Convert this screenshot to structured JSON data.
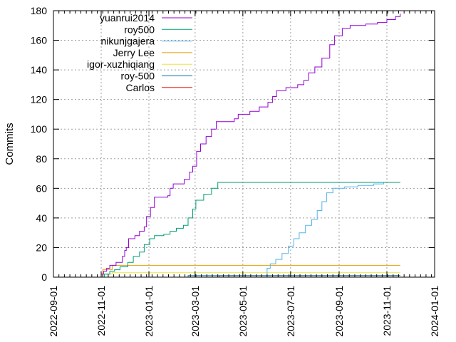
{
  "chart_data": {
    "type": "line",
    "title": "",
    "xlabel": "",
    "ylabel": "Commits",
    "xlim": [
      "2022-09-01",
      "2024-01-01"
    ],
    "ylim": [
      0,
      180
    ],
    "x_ticks": [
      "2022-09-01",
      "2022-11-01",
      "2023-01-01",
      "2023-03-01",
      "2023-05-01",
      "2023-07-01",
      "2023-09-01",
      "2023-11-01",
      "2024-01-01"
    ],
    "y_ticks": [
      0,
      20,
      40,
      60,
      80,
      100,
      120,
      140,
      160,
      180
    ],
    "grid": true,
    "legend_position": "top-left",
    "series": [
      {
        "name": "yuanrui2014",
        "color": "#9400d3",
        "points": [
          [
            "2022-10-30",
            0
          ],
          [
            "2022-11-01",
            2
          ],
          [
            "2022-11-04",
            4
          ],
          [
            "2022-11-08",
            6
          ],
          [
            "2022-11-12",
            8
          ],
          [
            "2022-11-20",
            10
          ],
          [
            "2022-11-28",
            14
          ],
          [
            "2022-12-01",
            18
          ],
          [
            "2022-12-03",
            20
          ],
          [
            "2022-12-06",
            26
          ],
          [
            "2022-12-14",
            28
          ],
          [
            "2022-12-20",
            31
          ],
          [
            "2022-12-26",
            34
          ],
          [
            "2022-12-29",
            41
          ],
          [
            "2023-01-03",
            47
          ],
          [
            "2023-01-08",
            54
          ],
          [
            "2023-01-25",
            55
          ],
          [
            "2023-01-28",
            60
          ],
          [
            "2023-02-01",
            63
          ],
          [
            "2023-02-15",
            66
          ],
          [
            "2023-02-22",
            71
          ],
          [
            "2023-02-26",
            75
          ],
          [
            "2023-03-03",
            85
          ],
          [
            "2023-03-08",
            90
          ],
          [
            "2023-03-15",
            95
          ],
          [
            "2023-03-22",
            100
          ],
          [
            "2023-03-28",
            105
          ],
          [
            "2023-04-20",
            107
          ],
          [
            "2023-04-25",
            110
          ],
          [
            "2023-05-10",
            112
          ],
          [
            "2023-05-22",
            115
          ],
          [
            "2023-06-02",
            118
          ],
          [
            "2023-06-08",
            122
          ],
          [
            "2023-06-13",
            126
          ],
          [
            "2023-06-25",
            128
          ],
          [
            "2023-07-10",
            130
          ],
          [
            "2023-07-18",
            133
          ],
          [
            "2023-07-24",
            138
          ],
          [
            "2023-08-01",
            142
          ],
          [
            "2023-08-10",
            148
          ],
          [
            "2023-08-20",
            157
          ],
          [
            "2023-08-26",
            163
          ],
          [
            "2023-09-05",
            168
          ],
          [
            "2023-09-15",
            170
          ],
          [
            "2023-10-05",
            171
          ],
          [
            "2023-10-20",
            172
          ],
          [
            "2023-11-01",
            174
          ],
          [
            "2023-11-12",
            176
          ],
          [
            "2023-11-18",
            178
          ]
        ]
      },
      {
        "name": "roy500",
        "color": "#009e73",
        "points": [
          [
            "2022-11-01",
            0
          ],
          [
            "2022-11-05",
            2
          ],
          [
            "2022-11-12",
            4
          ],
          [
            "2022-11-18",
            5
          ],
          [
            "2022-11-25",
            7
          ],
          [
            "2022-12-05",
            10
          ],
          [
            "2022-12-12",
            14
          ],
          [
            "2022-12-20",
            17
          ],
          [
            "2022-12-26",
            22
          ],
          [
            "2023-01-02",
            26
          ],
          [
            "2023-01-08",
            28
          ],
          [
            "2023-01-20",
            29
          ],
          [
            "2023-01-28",
            31
          ],
          [
            "2023-02-05",
            33
          ],
          [
            "2023-02-14",
            35
          ],
          [
            "2023-02-20",
            40
          ],
          [
            "2023-02-26",
            46
          ],
          [
            "2023-03-02",
            52
          ],
          [
            "2023-03-12",
            56
          ],
          [
            "2023-03-22",
            60
          ],
          [
            "2023-03-30",
            64
          ],
          [
            "2023-11-18",
            64
          ]
        ]
      },
      {
        "name": "nikunjgajera",
        "color": "#56b4e9",
        "points": [
          [
            "2023-05-29",
            0
          ],
          [
            "2023-06-01",
            6
          ],
          [
            "2023-06-05",
            9
          ],
          [
            "2023-06-12",
            12
          ],
          [
            "2023-06-20",
            16
          ],
          [
            "2023-06-28",
            21
          ],
          [
            "2023-07-05",
            26
          ],
          [
            "2023-07-12",
            30
          ],
          [
            "2023-07-20",
            35
          ],
          [
            "2023-07-28",
            39
          ],
          [
            "2023-08-04",
            45
          ],
          [
            "2023-08-10",
            51
          ],
          [
            "2023-08-16",
            57
          ],
          [
            "2023-08-24",
            60
          ],
          [
            "2023-09-08",
            61
          ],
          [
            "2023-09-25",
            62
          ],
          [
            "2023-10-15",
            63
          ],
          [
            "2023-10-28",
            64
          ],
          [
            "2023-11-18",
            64
          ]
        ]
      },
      {
        "name": "Jerry Lee",
        "color": "#e69f00",
        "points": [
          [
            "2022-11-01",
            0
          ],
          [
            "2022-11-03",
            5
          ],
          [
            "2022-11-15",
            8
          ],
          [
            "2023-11-18",
            8
          ]
        ]
      },
      {
        "name": "igor-xuzhiqiang",
        "color": "#f0e442",
        "points": [
          [
            "2022-10-31",
            0
          ],
          [
            "2022-11-05",
            2
          ],
          [
            "2022-11-15",
            3
          ],
          [
            "2023-11-18",
            3
          ]
        ]
      },
      {
        "name": "roy-500",
        "color": "#0072b2",
        "points": [
          [
            "2023-02-15",
            0
          ],
          [
            "2023-02-20",
            1
          ],
          [
            "2023-11-18",
            1
          ]
        ]
      },
      {
        "name": "Carlos",
        "color": "#e51e10",
        "points": [
          [
            "2023-03-25",
            0
          ],
          [
            "2023-04-01",
            1
          ],
          [
            "2023-11-18",
            1
          ]
        ]
      }
    ]
  }
}
